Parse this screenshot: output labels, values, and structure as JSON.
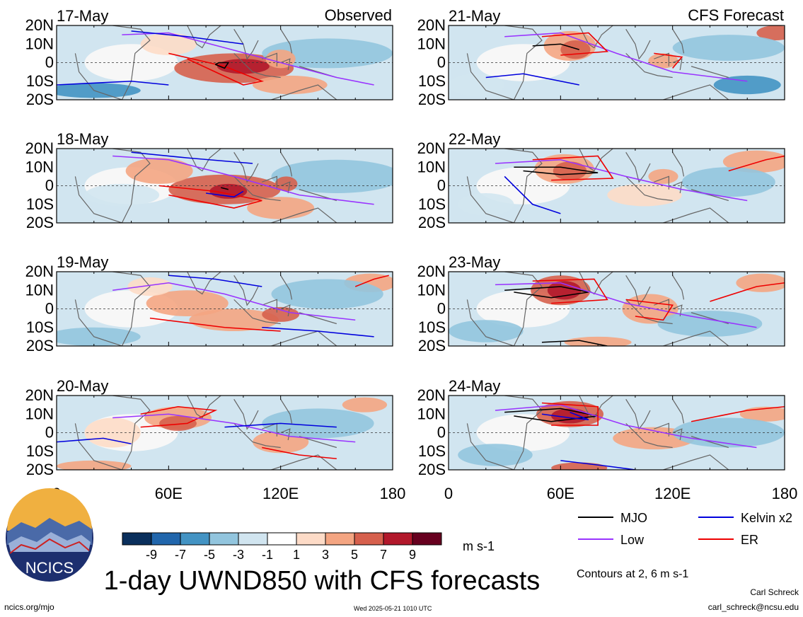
{
  "headers": {
    "left": "Observed",
    "right": "CFS Forecast"
  },
  "title": "1-day UWND850 with CFS forecasts",
  "units": "m s-1",
  "contour_note": "Contours at 2, 6 m s-1",
  "footer": {
    "url": "ncics.org/mjo",
    "timestamp": "Wed 2025-05-21 1010 UTC",
    "author": "Carl Schreck",
    "email": "carl_schreck@ncsu.edu"
  },
  "logo_text": "NCICS",
  "colorbar": {
    "colors": [
      "#0a2f5c",
      "#2166ac",
      "#4393c3",
      "#92c5de",
      "#d1e5f0",
      "#ffffff",
      "#fddbc7",
      "#f4a582",
      "#d6604d",
      "#b2182b",
      "#67001f"
    ],
    "labels": [
      "-9",
      "-7",
      "-5",
      "-3",
      "-1",
      "1",
      "3",
      "5",
      "7",
      "9"
    ]
  },
  "legend": [
    {
      "label": "MJO",
      "color": "#000000"
    },
    {
      "label": "Kelvin x2",
      "color": "#0000dd"
    },
    {
      "label": "Low",
      "color": "#9933ff"
    },
    {
      "label": "ER",
      "color": "#ee0000"
    }
  ],
  "chart_data": {
    "type": "heatmap",
    "variable": "UWND850",
    "x_ticks": [
      "0",
      "60E",
      "120E",
      "180"
    ],
    "xlim": [
      0,
      180
    ],
    "y_ticks": [
      "20N",
      "10N",
      "0",
      "10S",
      "20S"
    ],
    "ylim": [
      -20,
      20
    ],
    "panels": [
      {
        "date": "17-May",
        "column": "Observed"
      },
      {
        "date": "18-May",
        "column": "Observed"
      },
      {
        "date": "19-May",
        "column": "Observed"
      },
      {
        "date": "20-May",
        "column": "Observed"
      },
      {
        "date": "21-May",
        "column": "CFS Forecast"
      },
      {
        "date": "22-May",
        "column": "CFS Forecast"
      },
      {
        "date": "23-May",
        "column": "CFS Forecast"
      },
      {
        "date": "24-May",
        "column": "CFS Forecast"
      }
    ]
  }
}
